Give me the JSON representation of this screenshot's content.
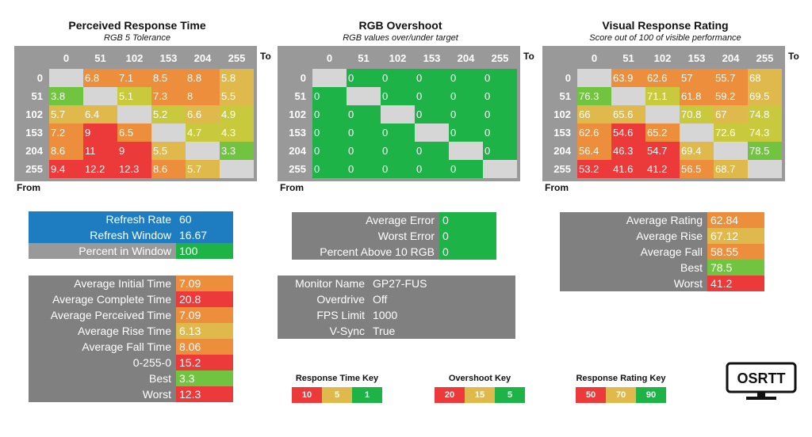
{
  "colors": {
    "green": "#1db346",
    "lightgreen": "#70c440",
    "yellowgreen": "#c9c93e",
    "yellow": "#e0b94c",
    "orange": "#ec8e3c",
    "red": "#ec3a3a",
    "diag": "#d6d6d6",
    "grey": "#999999",
    "blue": "#1d7dc0"
  },
  "headers": [
    "0",
    "51",
    "102",
    "153",
    "204",
    "255"
  ],
  "to_label": "To",
  "from_label": "From",
  "grids": [
    {
      "title": "Perceived Response Time",
      "subtitle": "RGB 5 Tolerance",
      "rows": [
        [
          null,
          "6.8",
          "7.1",
          "8.5",
          "8.8",
          "5.8"
        ],
        [
          "3.8",
          null,
          "5.1",
          "7.3",
          "8",
          "5.5"
        ],
        [
          "5.7",
          "6.4",
          null,
          "5.2",
          "6.6",
          "4.9"
        ],
        [
          "7.2",
          "9",
          "6.5",
          null,
          "4.7",
          "4.3"
        ],
        [
          "8.6",
          "11",
          "9",
          "5.5",
          null,
          "3.3"
        ],
        [
          "9.4",
          "12.2",
          "12.3",
          "8.6",
          "5.7",
          null
        ]
      ],
      "colors": [
        [
          null,
          "orange",
          "orange",
          "orange",
          "orange",
          "yellow"
        ],
        [
          "lightgreen",
          null,
          "yellowgreen",
          "orange",
          "orange",
          "yellow"
        ],
        [
          "yellow",
          "yellow",
          null,
          "yellowgreen",
          "yellow",
          "yellowgreen"
        ],
        [
          "orange",
          "red",
          "orange",
          null,
          "yellowgreen",
          "yellowgreen"
        ],
        [
          "orange",
          "red",
          "red",
          "yellow",
          null,
          "lightgreen"
        ],
        [
          "red",
          "red",
          "red",
          "orange",
          "yellow",
          null
        ]
      ]
    },
    {
      "title": "RGB Overshoot",
      "subtitle": "RGB values over/under target",
      "rows": [
        [
          null,
          "0",
          "0",
          "0",
          "0",
          "0"
        ],
        [
          "0",
          null,
          "0",
          "0",
          "0",
          "0"
        ],
        [
          "0",
          "0",
          null,
          "0",
          "0",
          "0"
        ],
        [
          "0",
          "0",
          "0",
          null,
          "0",
          "0"
        ],
        [
          "0",
          "0",
          "0",
          "0",
          null,
          "0"
        ],
        [
          "0",
          "0",
          "0",
          "0",
          "0",
          null
        ]
      ],
      "colors": [
        [
          null,
          "green",
          "green",
          "green",
          "green",
          "green"
        ],
        [
          "green",
          null,
          "green",
          "green",
          "green",
          "green"
        ],
        [
          "green",
          "green",
          null,
          "green",
          "green",
          "green"
        ],
        [
          "green",
          "green",
          "green",
          null,
          "green",
          "green"
        ],
        [
          "green",
          "green",
          "green",
          "green",
          null,
          "green"
        ],
        [
          "green",
          "green",
          "green",
          "green",
          "green",
          null
        ]
      ]
    },
    {
      "title": "Visual Response Rating",
      "subtitle": "Score out of 100 of visible performance",
      "rows": [
        [
          null,
          "63.9",
          "62.6",
          "57",
          "55.7",
          "68"
        ],
        [
          "76.3",
          null,
          "71.1",
          "61.8",
          "59.2",
          "69.5"
        ],
        [
          "66",
          "65.6",
          null,
          "70.8",
          "67",
          "74.8"
        ],
        [
          "62.6",
          "54.6",
          "65.2",
          null,
          "72.6",
          "74.3"
        ],
        [
          "56.4",
          "46.3",
          "54.7",
          "69.4",
          null,
          "78.5"
        ],
        [
          "53.2",
          "41.6",
          "41.2",
          "56.5",
          "68.7",
          null
        ]
      ],
      "colors": [
        [
          null,
          "orange",
          "orange",
          "orange",
          "orange",
          "yellow"
        ],
        [
          "lightgreen",
          null,
          "yellowgreen",
          "orange",
          "orange",
          "yellow"
        ],
        [
          "yellow",
          "yellow",
          null,
          "yellowgreen",
          "yellow",
          "yellowgreen"
        ],
        [
          "orange",
          "red",
          "orange",
          null,
          "yellowgreen",
          "yellowgreen"
        ],
        [
          "orange",
          "red",
          "red",
          "yellow",
          null,
          "lightgreen"
        ],
        [
          "red",
          "red",
          "red",
          "orange",
          "yellow",
          null
        ]
      ]
    }
  ],
  "refresh_table": [
    {
      "label": "Refresh Rate",
      "value": "60",
      "label_color": "blue",
      "value_color": "blue"
    },
    {
      "label": "Refresh Window",
      "value": "16.67",
      "label_color": "blue",
      "value_color": "blue"
    },
    {
      "label": "Percent in Window",
      "value": "100",
      "label_color": "grey",
      "value_color": "green"
    }
  ],
  "time_table": [
    {
      "label": "Average Initial Time",
      "value": "7.09",
      "value_color": "orange"
    },
    {
      "label": "Average Complete Time",
      "value": "20.8",
      "value_color": "red"
    },
    {
      "label": "Average Perceived Time",
      "value": "7.09",
      "value_color": "orange"
    },
    {
      "label": "Average Rise Time",
      "value": "6.13",
      "value_color": "yellow"
    },
    {
      "label": "Average Fall Time",
      "value": "8.06",
      "value_color": "orange"
    },
    {
      "label": "0-255-0",
      "value": "15.2",
      "value_color": "red"
    },
    {
      "label": "Best",
      "value": "3.3",
      "value_color": "lightgreen"
    },
    {
      "label": "Worst",
      "value": "12.3",
      "value_color": "red"
    }
  ],
  "error_table": [
    {
      "label": "Average Error",
      "value": "0",
      "value_color": "green"
    },
    {
      "label": "Worst Error",
      "value": "0",
      "value_color": "green"
    },
    {
      "label": "Percent Above 10 RGB",
      "value": "0",
      "value_color": "green"
    }
  ],
  "monitor_table": [
    {
      "label": "Monitor Name",
      "value": "GP27-FUS"
    },
    {
      "label": "Overdrive",
      "value": "Off"
    },
    {
      "label": "FPS Limit",
      "value": "1000"
    },
    {
      "label": "V-Sync",
      "value": "True"
    }
  ],
  "rating_table": [
    {
      "label": "Average Rating",
      "value": "62.84",
      "value_color": "orange"
    },
    {
      "label": "Average Rise",
      "value": "67.12",
      "value_color": "yellow"
    },
    {
      "label": "Average Fall",
      "value": "58.55",
      "value_color": "orange"
    },
    {
      "label": "Best",
      "value": "78.5",
      "value_color": "lightgreen"
    },
    {
      "label": "Worst",
      "value": "41.2",
      "value_color": "red"
    }
  ],
  "keys": [
    {
      "title": "Response Time Key",
      "values": [
        {
          "v": "10",
          "c": "red"
        },
        {
          "v": "5",
          "c": "yellow"
        },
        {
          "v": "1",
          "c": "green"
        }
      ]
    },
    {
      "title": "Overshoot Key",
      "values": [
        {
          "v": "20",
          "c": "red"
        },
        {
          "v": "15",
          "c": "yellow"
        },
        {
          "v": "5",
          "c": "green"
        }
      ]
    },
    {
      "title": "Response Rating Key",
      "values": [
        {
          "v": "50",
          "c": "red"
        },
        {
          "v": "70",
          "c": "yellow"
        },
        {
          "v": "90",
          "c": "green"
        }
      ]
    }
  ],
  "logo_text": "OSRTT"
}
